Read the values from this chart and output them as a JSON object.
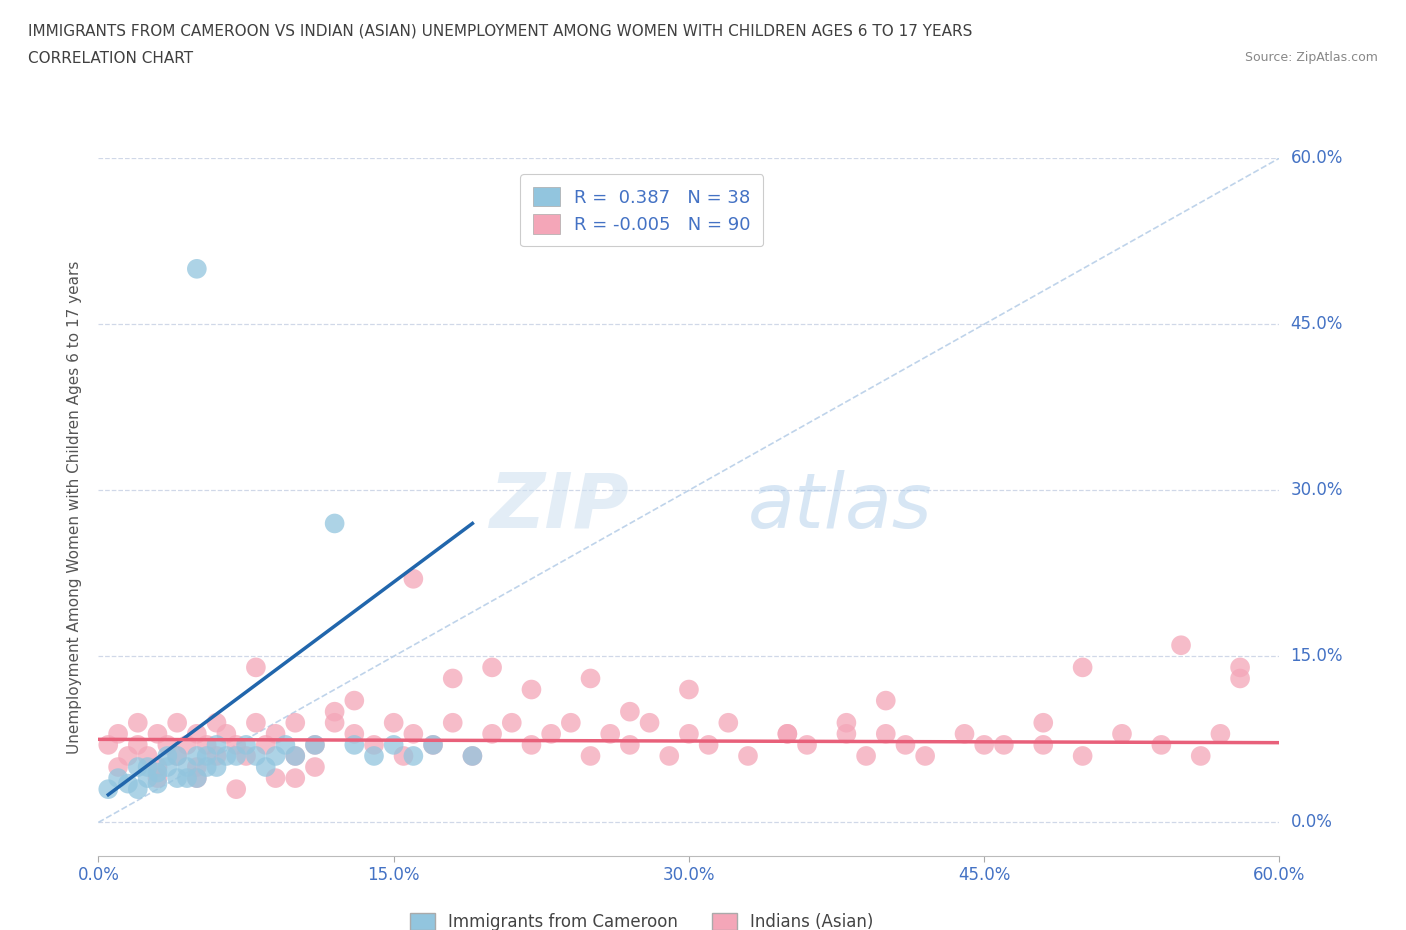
{
  "title_line1": "IMMIGRANTS FROM CAMEROON VS INDIAN (ASIAN) UNEMPLOYMENT AMONG WOMEN WITH CHILDREN AGES 6 TO 17 YEARS",
  "title_line2": "CORRELATION CHART",
  "source_text": "Source: ZipAtlas.com",
  "ylabel": "Unemployment Among Women with Children Ages 6 to 17 years",
  "xlim": [
    0.0,
    0.6
  ],
  "ylim": [
    -0.03,
    0.6
  ],
  "xticks": [
    0.0,
    0.15,
    0.3,
    0.45,
    0.6
  ],
  "yticks": [
    0.0,
    0.15,
    0.3,
    0.45,
    0.6
  ],
  "xticklabels": [
    "0.0%",
    "15.0%",
    "30.0%",
    "45.0%",
    "60.0%"
  ],
  "yticklabels": [
    "0.0%",
    "15.0%",
    "30.0%",
    "45.0%",
    "60.0%"
  ],
  "watermark_zip": "ZIP",
  "watermark_atlas": "atlas",
  "series1_color": "#92c5de",
  "series2_color": "#f4a6b8",
  "trend1_color": "#2166ac",
  "trend2_color": "#e8607a",
  "ref_line_color": "#b8cfe8",
  "background_color": "#ffffff",
  "grid_color": "#d0d8e8",
  "title_color": "#404040",
  "tick_label_color": "#4472c4",
  "source_color": "#888888",
  "cameroon_x": [
    0.005,
    0.01,
    0.015,
    0.02,
    0.02,
    0.025,
    0.025,
    0.03,
    0.03,
    0.035,
    0.035,
    0.04,
    0.04,
    0.045,
    0.045,
    0.05,
    0.05,
    0.055,
    0.055,
    0.06,
    0.06,
    0.065,
    0.07,
    0.075,
    0.08,
    0.085,
    0.09,
    0.095,
    0.1,
    0.11,
    0.12,
    0.13,
    0.14,
    0.15,
    0.16,
    0.17,
    0.19,
    0.05
  ],
  "cameroon_y": [
    0.03,
    0.04,
    0.035,
    0.05,
    0.03,
    0.04,
    0.05,
    0.045,
    0.035,
    0.05,
    0.06,
    0.04,
    0.06,
    0.05,
    0.04,
    0.06,
    0.04,
    0.06,
    0.05,
    0.07,
    0.05,
    0.06,
    0.06,
    0.07,
    0.06,
    0.05,
    0.06,
    0.07,
    0.06,
    0.07,
    0.27,
    0.07,
    0.06,
    0.07,
    0.06,
    0.07,
    0.06,
    0.5
  ],
  "cameroon_trend_x": [
    0.005,
    0.19
  ],
  "cameroon_trend_y": [
    0.025,
    0.27
  ],
  "indian_x": [
    0.005,
    0.01,
    0.01,
    0.015,
    0.02,
    0.02,
    0.025,
    0.03,
    0.03,
    0.035,
    0.04,
    0.04,
    0.045,
    0.05,
    0.05,
    0.055,
    0.06,
    0.06,
    0.065,
    0.07,
    0.075,
    0.08,
    0.085,
    0.09,
    0.1,
    0.1,
    0.11,
    0.12,
    0.13,
    0.14,
    0.15,
    0.155,
    0.16,
    0.17,
    0.18,
    0.19,
    0.2,
    0.21,
    0.22,
    0.23,
    0.24,
    0.25,
    0.26,
    0.27,
    0.28,
    0.29,
    0.3,
    0.31,
    0.32,
    0.33,
    0.35,
    0.36,
    0.38,
    0.39,
    0.4,
    0.41,
    0.42,
    0.44,
    0.46,
    0.48,
    0.5,
    0.52,
    0.54,
    0.56,
    0.57,
    0.58,
    0.03,
    0.05,
    0.07,
    0.09,
    0.11,
    0.13,
    0.16,
    0.2,
    0.25,
    0.3,
    0.35,
    0.4,
    0.45,
    0.5,
    0.55,
    0.58,
    0.22,
    0.27,
    0.08,
    0.12,
    0.18,
    0.48,
    0.38,
    0.1
  ],
  "indian_y": [
    0.07,
    0.05,
    0.08,
    0.06,
    0.07,
    0.09,
    0.06,
    0.08,
    0.05,
    0.07,
    0.06,
    0.09,
    0.07,
    0.08,
    0.05,
    0.07,
    0.09,
    0.06,
    0.08,
    0.07,
    0.06,
    0.09,
    0.07,
    0.08,
    0.06,
    0.09,
    0.07,
    0.09,
    0.08,
    0.07,
    0.09,
    0.06,
    0.08,
    0.07,
    0.09,
    0.06,
    0.08,
    0.09,
    0.07,
    0.08,
    0.09,
    0.06,
    0.08,
    0.07,
    0.09,
    0.06,
    0.08,
    0.07,
    0.09,
    0.06,
    0.08,
    0.07,
    0.09,
    0.06,
    0.08,
    0.07,
    0.06,
    0.08,
    0.07,
    0.09,
    0.06,
    0.08,
    0.07,
    0.06,
    0.08,
    0.13,
    0.04,
    0.04,
    0.03,
    0.04,
    0.05,
    0.11,
    0.22,
    0.14,
    0.13,
    0.12,
    0.08,
    0.11,
    0.07,
    0.14,
    0.16,
    0.14,
    0.12,
    0.1,
    0.14,
    0.1,
    0.13,
    0.07,
    0.08,
    0.04
  ],
  "indian_trend_x": [
    0.0,
    0.6
  ],
  "indian_trend_y": [
    0.075,
    0.072
  ]
}
